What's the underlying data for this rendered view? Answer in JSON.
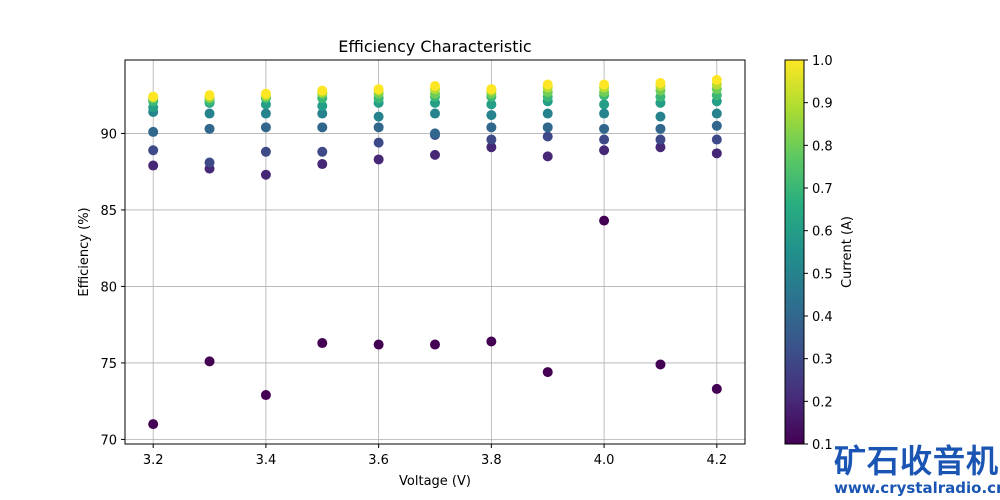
{
  "chart_data": {
    "type": "scatter",
    "title": "Efficiency Characteristic",
    "xlabel": "Voltage (V)",
    "ylabel": "Efficiency (%)",
    "xlim": [
      3.15,
      4.25
    ],
    "ylim": [
      69.7,
      94.8
    ],
    "xticks": [
      3.2,
      3.4,
      3.6,
      3.8,
      4.0,
      4.2
    ],
    "yticks": [
      70,
      75,
      80,
      85,
      90
    ],
    "grid": true,
    "colorbar": {
      "label": "Current (A)",
      "range": [
        0.1,
        1.0
      ],
      "ticks": [
        0.1,
        0.2,
        0.3,
        0.4,
        0.5,
        0.6,
        0.7,
        0.8,
        0.9,
        1.0
      ],
      "colormap": "viridis"
    },
    "x": [
      3.2,
      3.3,
      3.4,
      3.5,
      3.6,
      3.7,
      3.8,
      3.9,
      4.0,
      4.1,
      4.2
    ],
    "series": [
      {
        "name": "0.1 A",
        "current": 0.1,
        "values": [
          71.0,
          75.1,
          72.9,
          76.3,
          76.2,
          76.2,
          76.4,
          74.4,
          84.3,
          74.9,
          73.3
        ]
      },
      {
        "name": "0.2 A",
        "current": 0.2,
        "values": [
          87.9,
          87.7,
          87.3,
          88.0,
          88.3,
          88.6,
          89.1,
          88.5,
          88.9,
          89.1,
          88.7
        ]
      },
      {
        "name": "0.3 A",
        "current": 0.3,
        "values": [
          88.9,
          88.1,
          88.8,
          88.8,
          89.4,
          89.9,
          89.6,
          89.8,
          89.6,
          89.6,
          89.6
        ]
      },
      {
        "name": "0.4 A",
        "current": 0.4,
        "values": [
          90.1,
          90.3,
          90.4,
          90.4,
          90.4,
          90.0,
          90.4,
          90.4,
          90.3,
          90.3,
          90.5
        ]
      },
      {
        "name": "0.5 A",
        "current": 0.5,
        "values": [
          91.4,
          91.3,
          91.3,
          91.3,
          91.1,
          91.3,
          91.2,
          91.3,
          91.3,
          91.1,
          91.3
        ]
      },
      {
        "name": "0.6 A",
        "current": 0.6,
        "values": [
          91.7,
          92.0,
          91.9,
          91.8,
          92.0,
          92.0,
          91.9,
          92.1,
          91.9,
          92.0,
          92.1
        ]
      },
      {
        "name": "0.7 A",
        "current": 0.7,
        "values": [
          92.1,
          92.1,
          92.3,
          92.3,
          92.3,
          92.4,
          92.4,
          92.4,
          92.5,
          92.4,
          92.5
        ]
      },
      {
        "name": "0.8 A",
        "current": 0.8,
        "values": [
          92.3,
          92.3,
          92.4,
          92.6,
          92.6,
          92.6,
          92.6,
          92.7,
          92.7,
          92.8,
          92.9
        ]
      },
      {
        "name": "0.9 A",
        "current": 0.9,
        "values": [
          92.4,
          92.4,
          92.5,
          92.7,
          92.8,
          92.9,
          92.8,
          93.0,
          93.0,
          93.1,
          93.2
        ]
      },
      {
        "name": "1.0 A",
        "current": 1.0,
        "values": [
          92.4,
          92.5,
          92.6,
          92.8,
          92.9,
          93.1,
          92.9,
          93.2,
          93.2,
          93.3,
          93.5
        ]
      }
    ]
  },
  "watermark": {
    "text": "矿石收音机",
    "url": "www.crystalradio.cn"
  }
}
